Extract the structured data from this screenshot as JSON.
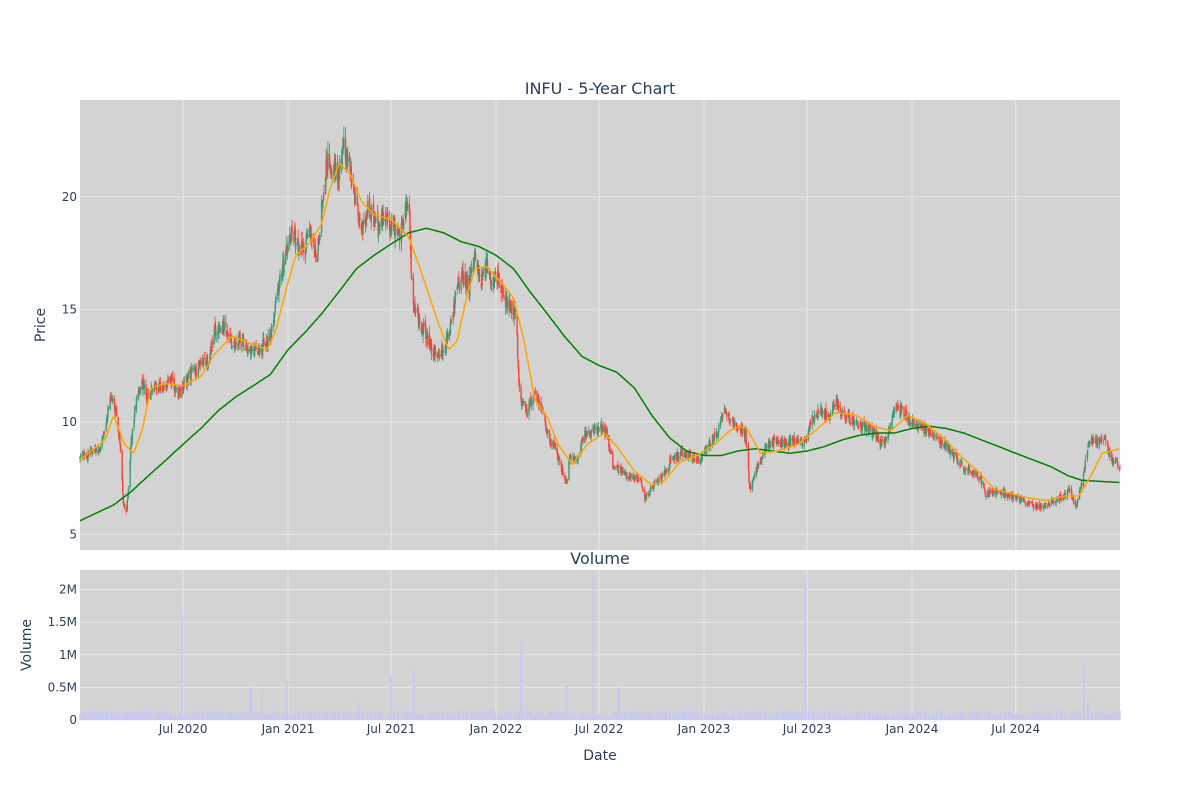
{
  "chart_data": [
    {
      "type": "candlestick",
      "title": "INFU - 5-Year Chart",
      "ylabel": "Price",
      "x_range": [
        "2020-01-02",
        "2024-12-31"
      ],
      "ylim": [
        4.3,
        24.3
      ],
      "y_ticks": [
        5,
        10,
        15,
        20
      ],
      "x_ticks": [
        "2020-07-01",
        "2021-01-01",
        "2021-07-01",
        "2022-01-01",
        "2022-07-01",
        "2023-01-01",
        "2023-07-01",
        "2024-01-01",
        "2024-07-01"
      ],
      "grid": true,
      "legend": "none",
      "colors": {
        "up": "#3d9970",
        "down": "#ff4136",
        "ma_short": "#ffa500",
        "ma_long": "#008000",
        "plot_bg": "#d3d3d3",
        "grid": "#e8e8e8"
      },
      "close_anchors": [
        [
          "2020-01-02",
          8.4
        ],
        [
          "2020-01-20",
          8.6
        ],
        [
          "2020-02-05",
          8.7
        ],
        [
          "2020-02-15",
          9.8
        ],
        [
          "2020-02-25",
          11.3
        ],
        [
          "2020-03-05",
          10.5
        ],
        [
          "2020-03-12",
          9.0
        ],
        [
          "2020-03-18",
          6.4
        ],
        [
          "2020-03-24",
          6.0
        ],
        [
          "2020-04-01",
          9.2
        ],
        [
          "2020-04-10",
          10.9
        ],
        [
          "2020-04-20",
          12.0
        ],
        [
          "2020-04-28",
          11.0
        ],
        [
          "2020-05-10",
          11.6
        ],
        [
          "2020-05-25",
          11.5
        ],
        [
          "2020-06-10",
          11.8
        ],
        [
          "2020-06-25",
          11.2
        ],
        [
          "2020-07-10",
          12.0
        ],
        [
          "2020-08-01",
          12.5
        ],
        [
          "2020-08-15",
          12.8
        ],
        [
          "2020-08-25",
          14.0
        ],
        [
          "2020-09-10",
          14.2
        ],
        [
          "2020-09-25",
          13.5
        ],
        [
          "2020-10-10",
          13.8
        ],
        [
          "2020-10-25",
          13.2
        ],
        [
          "2020-11-10",
          13.2
        ],
        [
          "2020-11-25",
          13.5
        ],
        [
          "2020-12-05",
          14.2
        ],
        [
          "2020-12-15",
          16.0
        ],
        [
          "2020-12-28",
          17.5
        ],
        [
          "2021-01-10",
          18.5
        ],
        [
          "2021-01-20",
          17.6
        ],
        [
          "2021-02-01",
          18.0
        ],
        [
          "2021-02-10",
          18.5
        ],
        [
          "2021-02-20",
          17.2
        ],
        [
          "2021-03-01",
          19.5
        ],
        [
          "2021-03-10",
          21.5
        ],
        [
          "2021-03-20",
          21.5
        ],
        [
          "2021-03-30",
          21.0
        ],
        [
          "2021-04-10",
          22.3
        ],
        [
          "2021-04-20",
          21.0
        ],
        [
          "2021-05-01",
          19.5
        ],
        [
          "2021-05-10",
          18.8
        ],
        [
          "2021-05-20",
          19.5
        ],
        [
          "2021-06-01",
          19.2
        ],
        [
          "2021-06-10",
          18.5
        ],
        [
          "2021-06-20",
          19.5
        ],
        [
          "2021-06-28",
          18.5
        ],
        [
          "2021-07-05",
          18.8
        ],
        [
          "2021-07-15",
          18.3
        ],
        [
          "2021-07-25",
          19.3
        ],
        [
          "2021-08-01",
          19.5
        ],
        [
          "2021-08-08",
          15.0
        ],
        [
          "2021-08-20",
          14.5
        ],
        [
          "2021-09-01",
          13.8
        ],
        [
          "2021-09-15",
          13.0
        ],
        [
          "2021-10-01",
          13.2
        ],
        [
          "2021-10-10",
          13.8
        ],
        [
          "2021-10-25",
          16.0
        ],
        [
          "2021-11-05",
          16.5
        ],
        [
          "2021-11-15",
          16.0
        ],
        [
          "2021-11-25",
          17.5
        ],
        [
          "2021-12-05",
          16.2
        ],
        [
          "2021-12-15",
          17.0
        ],
        [
          "2021-12-25",
          16.0
        ],
        [
          "2022-01-05",
          16.5
        ],
        [
          "2022-01-15",
          15.5
        ],
        [
          "2022-01-25",
          15.0
        ],
        [
          "2022-02-05",
          14.8
        ],
        [
          "2022-02-12",
          10.8
        ],
        [
          "2022-02-25",
          10.5
        ],
        [
          "2022-03-10",
          11.2
        ],
        [
          "2022-03-20",
          10.8
        ],
        [
          "2022-04-01",
          9.5
        ],
        [
          "2022-04-15",
          8.8
        ],
        [
          "2022-04-25",
          8.0
        ],
        [
          "2022-05-05",
          7.2
        ],
        [
          "2022-05-10",
          8.5
        ],
        [
          "2022-05-25",
          8.3
        ],
        [
          "2022-06-05",
          9.5
        ],
        [
          "2022-06-20",
          9.5
        ],
        [
          "2022-07-05",
          9.8
        ],
        [
          "2022-07-15",
          9.5
        ],
        [
          "2022-07-25",
          8.0
        ],
        [
          "2022-08-10",
          7.8
        ],
        [
          "2022-08-25",
          7.5
        ],
        [
          "2022-09-10",
          7.5
        ],
        [
          "2022-09-20",
          6.6
        ],
        [
          "2022-10-05",
          7.2
        ],
        [
          "2022-10-20",
          7.5
        ],
        [
          "2022-11-05",
          8.3
        ],
        [
          "2022-11-20",
          8.6
        ],
        [
          "2022-12-10",
          8.5
        ],
        [
          "2022-12-25",
          8.2
        ],
        [
          "2023-01-10",
          9.0
        ],
        [
          "2023-01-25",
          9.5
        ],
        [
          "2023-02-05",
          10.5
        ],
        [
          "2023-02-15",
          10.2
        ],
        [
          "2023-03-01",
          9.8
        ],
        [
          "2023-03-15",
          9.5
        ],
        [
          "2023-03-22",
          7.0
        ],
        [
          "2023-04-05",
          8.0
        ],
        [
          "2023-04-20",
          8.8
        ],
        [
          "2023-05-05",
          9.2
        ],
        [
          "2023-05-25",
          9.0
        ],
        [
          "2023-06-10",
          9.2
        ],
        [
          "2023-06-25",
          9.0
        ],
        [
          "2023-07-10",
          10.2
        ],
        [
          "2023-07-25",
          10.5
        ],
        [
          "2023-08-10",
          10.3
        ],
        [
          "2023-08-20",
          11.0
        ],
        [
          "2023-09-01",
          10.3
        ],
        [
          "2023-09-20",
          10.0
        ],
        [
          "2023-10-10",
          9.8
        ],
        [
          "2023-10-25",
          9.5
        ],
        [
          "2023-11-10",
          9.0
        ],
        [
          "2023-11-20",
          9.5
        ],
        [
          "2023-12-01",
          10.5
        ],
        [
          "2023-12-15",
          10.5
        ],
        [
          "2023-12-30",
          10.0
        ],
        [
          "2024-01-15",
          9.8
        ],
        [
          "2024-01-30",
          9.5
        ],
        [
          "2024-02-15",
          9.3
        ],
        [
          "2024-02-28",
          9.0
        ],
        [
          "2024-03-15",
          8.5
        ],
        [
          "2024-03-30",
          8.0
        ],
        [
          "2024-04-15",
          7.8
        ],
        [
          "2024-04-30",
          7.5
        ],
        [
          "2024-05-10",
          6.7
        ],
        [
          "2024-05-25",
          7.0
        ],
        [
          "2024-06-10",
          6.8
        ],
        [
          "2024-06-25",
          6.7
        ],
        [
          "2024-07-10",
          6.5
        ],
        [
          "2024-07-25",
          6.3
        ],
        [
          "2024-08-10",
          6.2
        ],
        [
          "2024-08-25",
          6.3
        ],
        [
          "2024-09-10",
          6.5
        ],
        [
          "2024-09-25",
          6.8
        ],
        [
          "2024-10-05",
          6.9
        ],
        [
          "2024-10-15",
          6.3
        ],
        [
          "2024-10-25",
          7.2
        ],
        [
          "2024-11-05",
          9.0
        ],
        [
          "2024-11-15",
          9.3
        ],
        [
          "2024-11-25",
          9.0
        ],
        [
          "2024-12-05",
          9.2
        ],
        [
          "2024-12-15",
          8.4
        ],
        [
          "2024-12-31",
          8.0
        ]
      ],
      "ma_short_anchors": [
        [
          "2020-01-02",
          8.3
        ],
        [
          "2020-02-15",
          9.2
        ],
        [
          "2020-03-01",
          10.3
        ],
        [
          "2020-03-20",
          9.0
        ],
        [
          "2020-04-05",
          8.6
        ],
        [
          "2020-04-20",
          9.6
        ],
        [
          "2020-05-05",
          11.5
        ],
        [
          "2020-06-01",
          11.7
        ],
        [
          "2020-07-01",
          11.6
        ],
        [
          "2020-08-01",
          12.0
        ],
        [
          "2020-08-25",
          13.0
        ],
        [
          "2020-09-25",
          13.8
        ],
        [
          "2020-10-25",
          13.5
        ],
        [
          "2020-11-25",
          13.2
        ],
        [
          "2020-12-10",
          14.0
        ],
        [
          "2021-01-01",
          16.2
        ],
        [
          "2021-01-15",
          17.4
        ],
        [
          "2021-02-10",
          18.0
        ],
        [
          "2021-03-01",
          18.8
        ],
        [
          "2021-03-15",
          20.3
        ],
        [
          "2021-04-01",
          21.5
        ],
        [
          "2021-04-20",
          21.0
        ],
        [
          "2021-05-10",
          19.8
        ],
        [
          "2021-06-01",
          19.2
        ],
        [
          "2021-07-01",
          19.0
        ],
        [
          "2021-08-01",
          18.2
        ],
        [
          "2021-08-25",
          16.5
        ],
        [
          "2021-09-20",
          14.5
        ],
        [
          "2021-10-10",
          13.2
        ],
        [
          "2021-10-25",
          13.6
        ],
        [
          "2021-11-10",
          15.5
        ],
        [
          "2021-11-25",
          16.8
        ],
        [
          "2021-12-15",
          16.9
        ],
        [
          "2022-01-10",
          16.2
        ],
        [
          "2022-02-01",
          15.5
        ],
        [
          "2022-02-20",
          13.5
        ],
        [
          "2022-03-10",
          11.0
        ],
        [
          "2022-04-01",
          10.2
        ],
        [
          "2022-04-20",
          9.0
        ],
        [
          "2022-05-15",
          8.1
        ],
        [
          "2022-06-10",
          9.0
        ],
        [
          "2022-07-10",
          9.5
        ],
        [
          "2022-08-01",
          8.9
        ],
        [
          "2022-09-01",
          7.8
        ],
        [
          "2022-10-01",
          7.2
        ],
        [
          "2022-10-20",
          7.3
        ],
        [
          "2022-11-20",
          8.2
        ],
        [
          "2022-12-20",
          8.5
        ],
        [
          "2023-01-20",
          9.0
        ],
        [
          "2023-02-20",
          9.7
        ],
        [
          "2023-03-15",
          9.8
        ],
        [
          "2023-04-10",
          8.6
        ],
        [
          "2023-05-10",
          8.7
        ],
        [
          "2023-06-15",
          9.0
        ],
        [
          "2023-07-15",
          9.6
        ],
        [
          "2023-08-20",
          10.4
        ],
        [
          "2023-09-25",
          10.3
        ],
        [
          "2023-10-25",
          9.8
        ],
        [
          "2023-11-25",
          9.6
        ],
        [
          "2023-12-25",
          10.3
        ],
        [
          "2024-01-25",
          9.9
        ],
        [
          "2024-02-25",
          9.3
        ],
        [
          "2024-03-25",
          8.5
        ],
        [
          "2024-04-25",
          7.8
        ],
        [
          "2024-05-25",
          7.0
        ],
        [
          "2024-06-25",
          6.8
        ],
        [
          "2024-07-25",
          6.6
        ],
        [
          "2024-08-25",
          6.5
        ],
        [
          "2024-09-25",
          6.7
        ],
        [
          "2024-10-20",
          6.7
        ],
        [
          "2024-11-10",
          7.6
        ],
        [
          "2024-11-30",
          8.6
        ],
        [
          "2024-12-31",
          8.8
        ]
      ],
      "ma_long_anchors": [
        [
          "2020-01-02",
          5.6
        ],
        [
          "2020-03-01",
          6.3
        ],
        [
          "2020-04-01",
          6.9
        ],
        [
          "2020-05-01",
          7.6
        ],
        [
          "2020-06-01",
          8.3
        ],
        [
          "2020-07-01",
          9.0
        ],
        [
          "2020-08-01",
          9.7
        ],
        [
          "2020-09-01",
          10.5
        ],
        [
          "2020-10-01",
          11.1
        ],
        [
          "2020-11-01",
          11.6
        ],
        [
          "2020-12-01",
          12.1
        ],
        [
          "2021-01-01",
          13.2
        ],
        [
          "2021-02-01",
          14.0
        ],
        [
          "2021-03-01",
          14.8
        ],
        [
          "2021-04-01",
          15.8
        ],
        [
          "2021-05-01",
          16.8
        ],
        [
          "2021-06-01",
          17.4
        ],
        [
          "2021-07-01",
          17.9
        ],
        [
          "2021-08-01",
          18.4
        ],
        [
          "2021-09-01",
          18.6
        ],
        [
          "2021-10-01",
          18.4
        ],
        [
          "2021-11-01",
          18.0
        ],
        [
          "2021-12-01",
          17.8
        ],
        [
          "2022-01-01",
          17.4
        ],
        [
          "2022-02-01",
          16.8
        ],
        [
          "2022-03-01",
          15.8
        ],
        [
          "2022-04-01",
          14.8
        ],
        [
          "2022-05-01",
          13.8
        ],
        [
          "2022-06-01",
          12.9
        ],
        [
          "2022-07-01",
          12.5
        ],
        [
          "2022-08-01",
          12.2
        ],
        [
          "2022-09-01",
          11.5
        ],
        [
          "2022-10-01",
          10.3
        ],
        [
          "2022-11-01",
          9.3
        ],
        [
          "2022-12-01",
          8.7
        ],
        [
          "2023-01-01",
          8.5
        ],
        [
          "2023-02-01",
          8.5
        ],
        [
          "2023-03-01",
          8.7
        ],
        [
          "2023-04-01",
          8.8
        ],
        [
          "2023-05-01",
          8.7
        ],
        [
          "2023-06-01",
          8.6
        ],
        [
          "2023-07-01",
          8.7
        ],
        [
          "2023-08-01",
          8.9
        ],
        [
          "2023-09-01",
          9.2
        ],
        [
          "2023-10-01",
          9.4
        ],
        [
          "2023-11-01",
          9.5
        ],
        [
          "2023-12-01",
          9.5
        ],
        [
          "2024-01-01",
          9.7
        ],
        [
          "2024-02-01",
          9.8
        ],
        [
          "2024-03-01",
          9.7
        ],
        [
          "2024-04-01",
          9.5
        ],
        [
          "2024-05-01",
          9.2
        ],
        [
          "2024-06-01",
          8.9
        ],
        [
          "2024-07-01",
          8.6
        ],
        [
          "2024-08-01",
          8.3
        ],
        [
          "2024-09-01",
          8.0
        ],
        [
          "2024-10-01",
          7.6
        ],
        [
          "2024-10-25",
          7.4
        ],
        [
          "2024-12-31",
          7.3
        ]
      ]
    },
    {
      "type": "bar",
      "title": "Volume",
      "xlabel": "Date",
      "ylabel": "Volume",
      "ylim": [
        0,
        2300000
      ],
      "y_ticks": [
        0,
        500000,
        1000000,
        1500000,
        2000000
      ],
      "y_tick_labels": [
        "0",
        "0.5M",
        "1M",
        "1.5M",
        "2M"
      ],
      "x_ticks": [
        "2020-07-01",
        "2021-01-01",
        "2021-07-01",
        "2022-01-01",
        "2022-07-01",
        "2023-01-01",
        "2023-07-01",
        "2024-01-01",
        "2024-07-01"
      ],
      "x_tick_labels": [
        "Jul 2020",
        "Jan 2021",
        "Jul 2021",
        "Jan 2022",
        "Jul 2022",
        "Jan 2023",
        "Jul 2023",
        "Jan 2024",
        "Jul 2024"
      ],
      "bar_color": "#c8c8f0",
      "baseline_volume": 100000,
      "spikes": [
        [
          "2020-06-29",
          1600000
        ],
        [
          "2020-10-28",
          500000
        ],
        [
          "2020-11-15",
          480000
        ],
        [
          "2020-12-30",
          600000
        ],
        [
          "2021-05-05",
          280000
        ],
        [
          "2021-06-30",
          680000
        ],
        [
          "2021-08-10",
          750000
        ],
        [
          "2022-02-15",
          1200000
        ],
        [
          "2022-05-05",
          550000
        ],
        [
          "2022-06-20",
          2200000
        ],
        [
          "2022-08-05",
          500000
        ],
        [
          "2023-06-28",
          2100000
        ],
        [
          "2024-10-28",
          850000
        ],
        [
          "2024-11-05",
          300000
        ]
      ]
    }
  ]
}
